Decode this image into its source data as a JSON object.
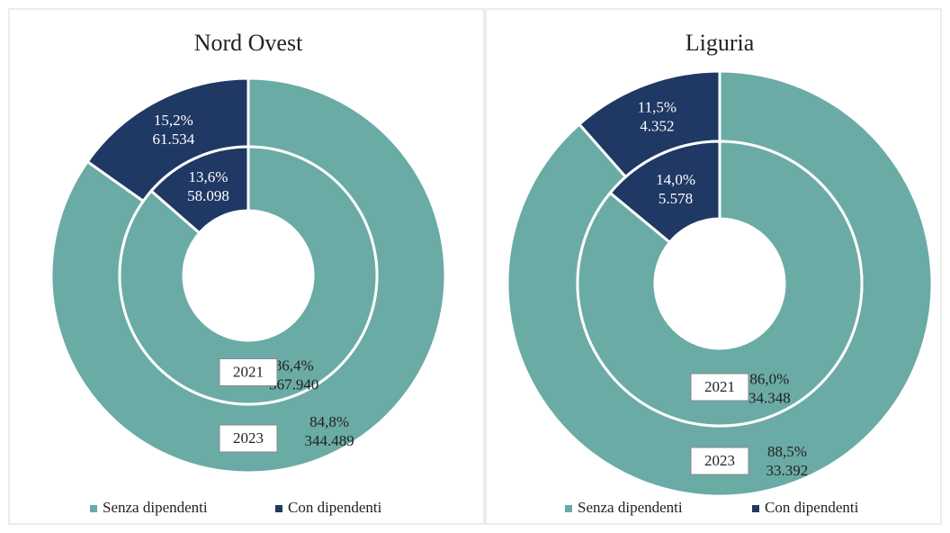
{
  "chart_data": [
    {
      "type": "pie",
      "title": "Nord Ovest",
      "categories": [
        "Senza dipendenti",
        "Con dipendenti"
      ],
      "colors": [
        "#6aaba5",
        "#1f3864"
      ],
      "rings": [
        {
          "name": "2023",
          "values": [
            84.8,
            15.2
          ],
          "value_labels": [
            "84,8%",
            "15,2%"
          ],
          "counts": [
            344489,
            61534
          ],
          "count_labels": [
            "344.489",
            "61.534"
          ]
        },
        {
          "name": "2021",
          "values": [
            86.4,
            13.6
          ],
          "value_labels": [
            "86,4%",
            "13,6%"
          ],
          "counts": [
            367940,
            58098
          ],
          "count_labels": [
            "367.940",
            "58.098"
          ]
        }
      ]
    },
    {
      "type": "pie",
      "title": "Liguria",
      "categories": [
        "Senza dipendenti",
        "Con dipendenti"
      ],
      "colors": [
        "#6aaba5",
        "#1f3864"
      ],
      "rings": [
        {
          "name": "2023",
          "values": [
            88.5,
            11.5
          ],
          "value_labels": [
            "88,5%",
            "11,5%"
          ],
          "counts": [
            33392,
            4352
          ],
          "count_labels": [
            "33.392",
            "4.352"
          ]
        },
        {
          "name": "2021",
          "values": [
            86.0,
            14.0
          ],
          "value_labels": [
            "86,0%",
            "14,0%"
          ],
          "counts": [
            34348,
            5578
          ],
          "count_labels": [
            "34.348",
            "5.578"
          ]
        }
      ]
    }
  ]
}
